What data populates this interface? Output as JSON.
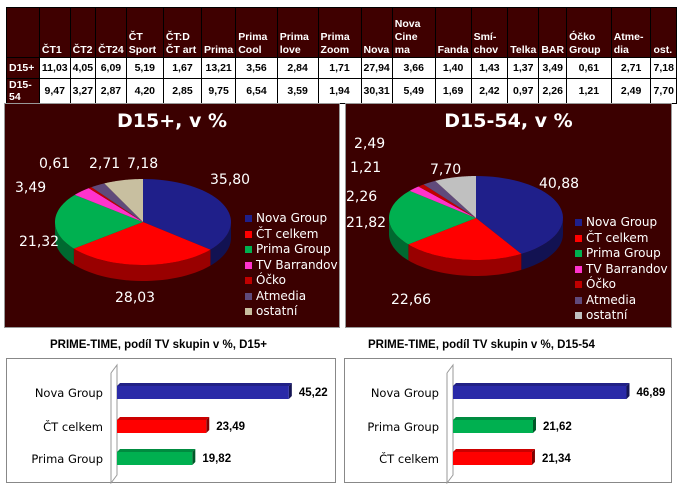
{
  "table": {
    "columns": [
      "",
      "ČT1",
      "ČT2",
      "ČT24",
      "ČT Sport",
      "ČT:D ČT art",
      "Prima",
      "Prima Cool",
      "Prima love",
      "Prima Zoom",
      "Nova",
      "Nova Cine ma",
      "Fanda",
      "Smí- chov",
      "Telka",
      "BAR",
      "Óčko Group",
      "Atme- dia",
      "ost."
    ],
    "rows": [
      {
        "label": "D15+",
        "values": [
          "11,03",
          "4,05",
          "6,09",
          "5,19",
          "1,67",
          "13,21",
          "3,56",
          "2,84",
          "1,71",
          "27,94",
          "3,66",
          "1,40",
          "1,43",
          "1,37",
          "3,49",
          "0,61",
          "2,71",
          "7,18"
        ]
      },
      {
        "label": "D15-54",
        "values": [
          "9,47",
          "3,27",
          "2,87",
          "4,20",
          "2,85",
          "9,75",
          "6,54",
          "3,59",
          "1,94",
          "30,31",
          "5,49",
          "1,69",
          "2,42",
          "0,97",
          "2,26",
          "1,21",
          "2,49",
          "7,70"
        ]
      }
    ]
  },
  "chart_data": [
    {
      "type": "pie",
      "title": "D15+, v %",
      "categories": [
        "Nova Group",
        "ČT celkem",
        "Prima Group",
        "TV Barrandov",
        "Óčko",
        "Atmedia",
        "ostatní"
      ],
      "values": [
        35.8,
        28.03,
        21.32,
        3.49,
        0.61,
        2.71,
        7.18
      ],
      "labels": [
        "35,80",
        "28,03",
        "21,32",
        "3,49",
        "0,61",
        "2,71",
        "7,18"
      ],
      "colors": [
        "#1f1f8a",
        "#ff0000",
        "#00b050",
        "#ff33cc",
        "#c00000",
        "#604a7b",
        "#c8bfa0"
      ],
      "legend": "right"
    },
    {
      "type": "pie",
      "title": "D15-54, v %",
      "categories": [
        "Nova Group",
        "ČT celkem",
        "Prima Group",
        "TV Barrandov",
        "Óčko",
        "Atmedia",
        "ostatní"
      ],
      "values": [
        40.88,
        22.66,
        21.82,
        2.26,
        1.21,
        2.49,
        7.7
      ],
      "labels": [
        "40,88",
        "22,66",
        "21,82",
        "2,26",
        "1,21",
        "2,49",
        "7,70"
      ],
      "colors": [
        "#1f1f8a",
        "#ff0000",
        "#00b050",
        "#ff33cc",
        "#c00000",
        "#604a7b",
        "#c0c0c0"
      ],
      "legend": "right"
    },
    {
      "type": "bar",
      "title": "PRIME-TIME, podíl TV skupin v %, D15+",
      "categories": [
        "Nova Group",
        "ČT celkem",
        "Prima Group"
      ],
      "values": [
        45.22,
        23.49,
        19.82
      ],
      "labels": [
        "45,22",
        "23,49",
        "19,82"
      ],
      "colors": [
        "#2a2aa8",
        "#ff0000",
        "#00b050"
      ],
      "xlim": [
        0,
        50
      ]
    },
    {
      "type": "bar",
      "title": "PRIME-TIME, podíl TV skupin v %, D15-54",
      "categories": [
        "Nova Group",
        "Prima Group",
        "ČT celkem"
      ],
      "values": [
        46.89,
        21.62,
        21.34
      ],
      "labels": [
        "46,89",
        "21,62",
        "21,34"
      ],
      "colors": [
        "#2a2aa8",
        "#00b050",
        "#ff0000"
      ],
      "xlim": [
        0,
        50
      ]
    }
  ]
}
